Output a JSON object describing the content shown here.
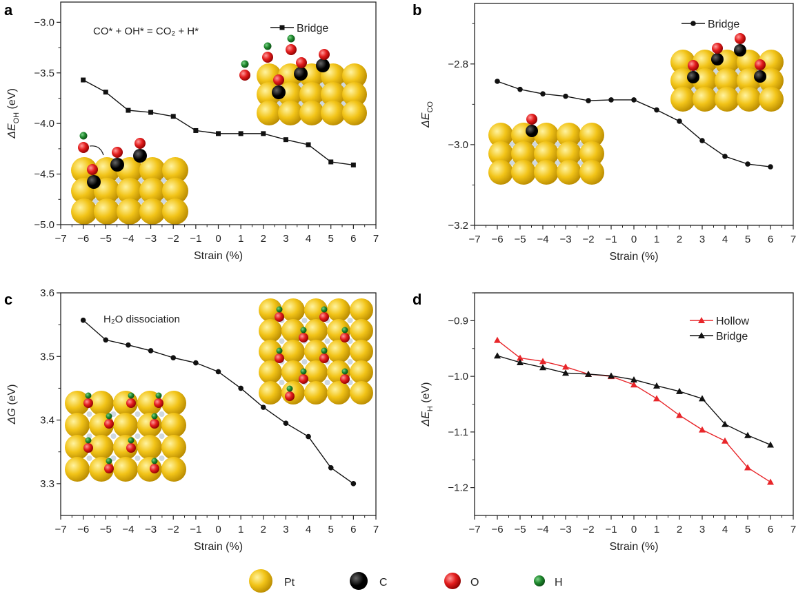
{
  "chart_data": [
    {
      "panel": "a",
      "type": "line",
      "annotation": "CO* + OH* = CO₂ + H*",
      "xlabel": "Strain (%)",
      "ylabel": {
        "symbol": "ΔE",
        "sub": "OH",
        "unit": " (eV)"
      },
      "xlim": [
        -7,
        7
      ],
      "ylim": [
        -5.0,
        -2.8
      ],
      "xticks": [
        -7,
        -6,
        -5,
        -4,
        -3,
        -2,
        -1,
        0,
        1,
        2,
        3,
        4,
        5,
        6,
        7
      ],
      "yticks": [
        -5.0,
        -4.5,
        -4.0,
        -3.5,
        -3.0
      ],
      "grid": false,
      "legend_position": "top-right",
      "series": [
        {
          "name": "Bridge",
          "marker": "square",
          "color": "#111111",
          "x": [
            -6,
            -5,
            -4,
            -3,
            -2,
            -1,
            0,
            1,
            2,
            3,
            4,
            5,
            6
          ],
          "y": [
            -3.57,
            -3.69,
            -3.87,
            -3.89,
            -3.93,
            -4.07,
            -4.1,
            -4.1,
            -4.1,
            -4.16,
            -4.21,
            -4.38,
            -4.41
          ]
        }
      ]
    },
    {
      "panel": "b",
      "type": "line",
      "annotation": "",
      "xlabel": "Strain (%)",
      "ylabel": {
        "symbol": "ΔE",
        "sub": "CO",
        "unit": ""
      },
      "xlim": [
        -7,
        7
      ],
      "ylim": [
        -3.2,
        -2.65
      ],
      "xticks": [
        -7,
        -6,
        -5,
        -4,
        -3,
        -2,
        -1,
        0,
        1,
        2,
        3,
        4,
        5,
        6,
        7
      ],
      "yticks": [
        -3.2,
        -3.0,
        -2.8
      ],
      "grid": false,
      "legend_position": "top-right",
      "series": [
        {
          "name": "Bridge",
          "marker": "circle",
          "color": "#111111",
          "x": [
            -6,
            -5,
            -4,
            -3,
            -2,
            -1,
            0,
            1,
            2,
            3,
            4,
            5,
            6
          ],
          "y": [
            -2.843,
            -2.863,
            -2.874,
            -2.88,
            -2.891,
            -2.889,
            -2.889,
            -2.914,
            -2.942,
            -2.99,
            -3.029,
            -3.048,
            -3.055
          ]
        }
      ]
    },
    {
      "panel": "c",
      "type": "line",
      "annotation": "H₂O dissociation",
      "xlabel": "Strain (%)",
      "ylabel": {
        "symbol": "ΔG",
        "sub": "",
        "unit": " (eV)"
      },
      "xlim": [
        -7,
        7
      ],
      "ylim": [
        3.25,
        3.6
      ],
      "xticks": [
        -7,
        -6,
        -5,
        -4,
        -3,
        -2,
        -1,
        0,
        1,
        2,
        3,
        4,
        5,
        6,
        7
      ],
      "yticks": [
        3.3,
        3.4,
        3.5,
        3.6
      ],
      "grid": false,
      "series": [
        {
          "name": "",
          "marker": "circle",
          "color": "#111111",
          "x": [
            -6,
            -5,
            -4,
            -3,
            -2,
            -1,
            0,
            1,
            2,
            3,
            4,
            5,
            6
          ],
          "y": [
            3.557,
            3.526,
            3.518,
            3.509,
            3.498,
            3.49,
            3.476,
            3.45,
            3.42,
            3.395,
            3.374,
            3.325,
            3.3
          ]
        }
      ]
    },
    {
      "panel": "d",
      "type": "line",
      "annotation": "",
      "xlabel": "Strain (%)",
      "ylabel": {
        "symbol": "ΔE",
        "sub": "H",
        "unit": " (eV)"
      },
      "xlim": [
        -7,
        7
      ],
      "ylim": [
        -1.25,
        -0.85
      ],
      "xticks": [
        -7,
        -6,
        -5,
        -4,
        -3,
        -2,
        -1,
        0,
        1,
        2,
        3,
        4,
        5,
        6,
        7
      ],
      "yticks": [
        -1.2,
        -1.1,
        -1.0,
        -0.9
      ],
      "grid": false,
      "legend_position": "top-right",
      "series": [
        {
          "name": "Hollow",
          "marker": "triangle",
          "color": "#e8262a",
          "x": [
            -6,
            -5,
            -4,
            -3,
            -2,
            -1,
            0,
            1,
            2,
            3,
            4,
            5,
            6
          ],
          "y": [
            -0.935,
            -0.967,
            -0.973,
            -0.983,
            -0.996,
            -1.0,
            -1.015,
            -1.04,
            -1.07,
            -1.096,
            -1.116,
            -1.164,
            -1.19
          ]
        },
        {
          "name": "Bridge",
          "marker": "triangle",
          "color": "#111111",
          "x": [
            -6,
            -5,
            -4,
            -3,
            -2,
            -1,
            0,
            1,
            2,
            3,
            4,
            5,
            6
          ],
          "y": [
            -0.963,
            -0.975,
            -0.984,
            -0.994,
            -0.996,
            -0.999,
            -1.006,
            -1.017,
            -1.027,
            -1.04,
            -1.086,
            -1.106,
            -1.123
          ]
        }
      ]
    }
  ],
  "atom_legend": [
    {
      "label": "Pt",
      "color": "#f2c418"
    },
    {
      "label": "C",
      "color": "#000000"
    },
    {
      "label": "O",
      "color": "#e31d1d"
    },
    {
      "label": "H",
      "color": "#1f8a2e"
    }
  ]
}
